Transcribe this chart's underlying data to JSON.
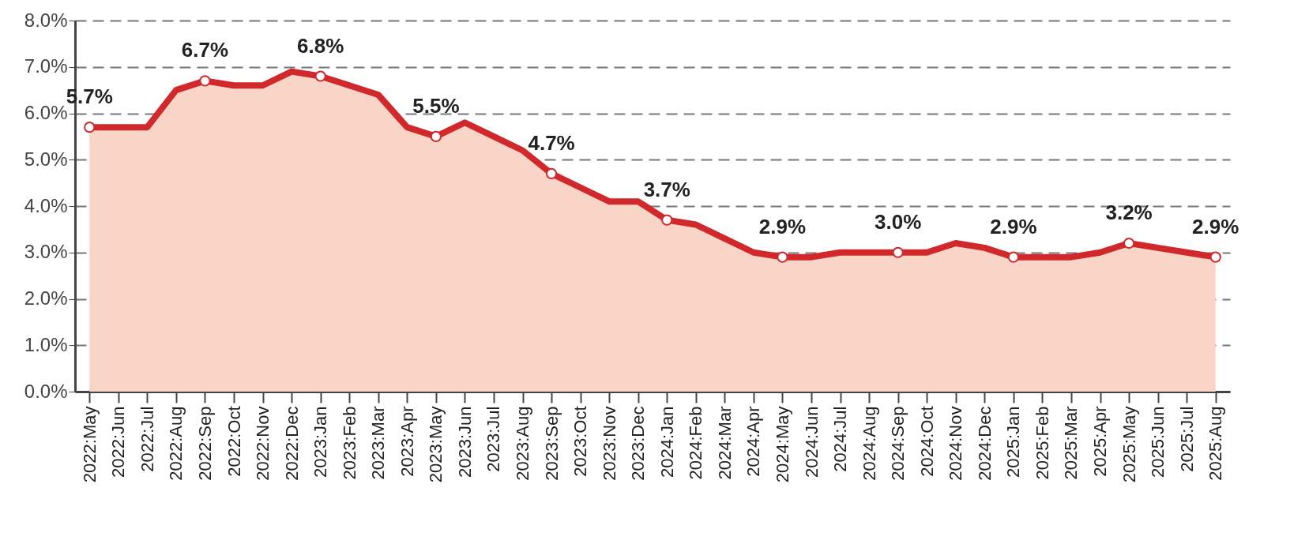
{
  "chart_data": {
    "type": "area",
    "categories": [
      "2022:May",
      "2022:Jun",
      "2022:Jul",
      "2022:Aug",
      "2022:Sep",
      "2022:Oct",
      "2022:Nov",
      "2022:Dec",
      "2023:Jan",
      "2023:Feb",
      "2023:Mar",
      "2023:Apr",
      "2023:May",
      "2023:Jun",
      "2023:Jul",
      "2023:Aug",
      "2023:Sep",
      "2023:Oct",
      "2023:Nov",
      "2023:Dec",
      "2024:Jan",
      "2024:Feb",
      "2024:Mar",
      "2024:Apr",
      "2024:May",
      "2024:Jun",
      "2024:Jul",
      "2024:Aug",
      "2024:Sep",
      "2024:Oct",
      "2024:Nov",
      "2024:Dec",
      "2025:Jan",
      "2025:Feb",
      "2025:Mar",
      "2025:Apr",
      "2025:May",
      "2025:Jun",
      "2025:Jul",
      "2025:Aug"
    ],
    "series": [
      {
        "color": "#d0282b",
        "values": [
          5.7,
          5.7,
          5.7,
          6.5,
          6.7,
          6.6,
          6.6,
          6.9,
          6.8,
          6.6,
          6.4,
          5.7,
          5.5,
          5.8,
          5.5,
          5.2,
          4.7,
          4.4,
          4.1,
          4.1,
          3.7,
          3.6,
          3.3,
          3.0,
          2.9,
          2.9,
          3.0,
          3.0,
          3.0,
          3.0,
          3.2,
          3.1,
          2.9,
          2.9,
          2.9,
          3.0,
          3.2,
          3.1,
          3.0,
          2.9
        ],
        "value_labels": [
          "5.7%",
          null,
          null,
          null,
          "6.7%",
          null,
          null,
          null,
          "6.8%",
          null,
          null,
          null,
          "5.5%",
          null,
          null,
          null,
          "4.7%",
          null,
          null,
          null,
          "3.7%",
          null,
          null,
          null,
          "2.9%",
          null,
          null,
          null,
          "3.0%",
          null,
          null,
          null,
          "2.9%",
          null,
          null,
          null,
          "3.2%",
          null,
          null,
          "2.9%"
        ]
      }
    ],
    "ylim": [
      0,
      8
    ],
    "yticks": [
      {
        "value": 0,
        "label": "0.0%"
      },
      {
        "value": 1,
        "label": "1.0%"
      },
      {
        "value": 2,
        "label": "2.0%"
      },
      {
        "value": 3,
        "label": "3.0%"
      },
      {
        "value": 4,
        "label": "4.0%"
      },
      {
        "value": 5,
        "label": "5.0%"
      },
      {
        "value": 6,
        "label": "6.0%"
      },
      {
        "value": 7,
        "label": "7.0%"
      },
      {
        "value": 8,
        "label": "8.0%"
      }
    ],
    "grid": "y",
    "line_style": "solid"
  }
}
